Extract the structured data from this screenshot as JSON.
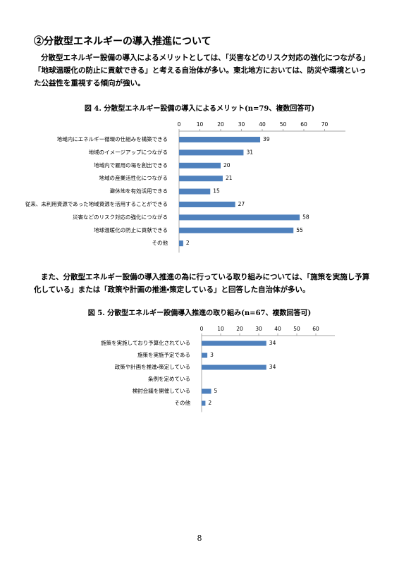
{
  "heading": "②分散型エネルギーの導入推進について",
  "paragraph1": "分散型エネルギー設備の導入によるメリットとしては、「災害などのリスク対応の強化につながる」「地球温暖化の防止に貢献できる」と考える自治体が多い。東北地方においては、防災や環境といった公益性を重視する傾向が強い。",
  "paragraph2": "また、分散型エネルギー設備の導入推進の為に行っている取り組みについては、「施策を実施し予算化している」または「政策や計画の推進・策定している」と回答した自治体が多い。",
  "chart_data": [
    {
      "type": "hbar",
      "title": "図 4. 分散型エネルギー設備の導入によるメリット(n=79、複数回答可)",
      "categories": [
        "地域内にエネルギー循環の仕組みを構築できる",
        "地域のイメージアップにつながる",
        "地域内で雇用の場を創出できる",
        "地域の産業活性化につながる",
        "避休地を有効活用できる",
        "従来、未利用資源であった地域資源を活用することができる",
        "災害などのリスク対応の強化につながる",
        "地球温暖化の防止に貢献できる",
        "その他"
      ],
      "values": [
        39,
        31,
        20,
        21,
        15,
        27,
        58,
        55,
        2
      ],
      "color": "#4f81bd",
      "xlim": [
        0,
        80
      ],
      "xticks": [
        0,
        10,
        20,
        30,
        40,
        50,
        60,
        70
      ]
    },
    {
      "type": "hbar",
      "title": "図 5. 分散型エネルギー設備導入推進の取り組み(n=67、複数回答可)",
      "categories": [
        "施策を実施しており予算化されている",
        "施策を実施予定である",
        "政策や計画を推進・策定している",
        "条例を定めている",
        "検討会議を開催している",
        "その他"
      ],
      "values": [
        34,
        3,
        34,
        0,
        5,
        2
      ],
      "color": "#4f81bd",
      "xlim": [
        0,
        70
      ],
      "xticks": [
        0,
        10,
        20,
        30,
        40,
        50,
        60
      ]
    }
  ],
  "page_number": "8"
}
